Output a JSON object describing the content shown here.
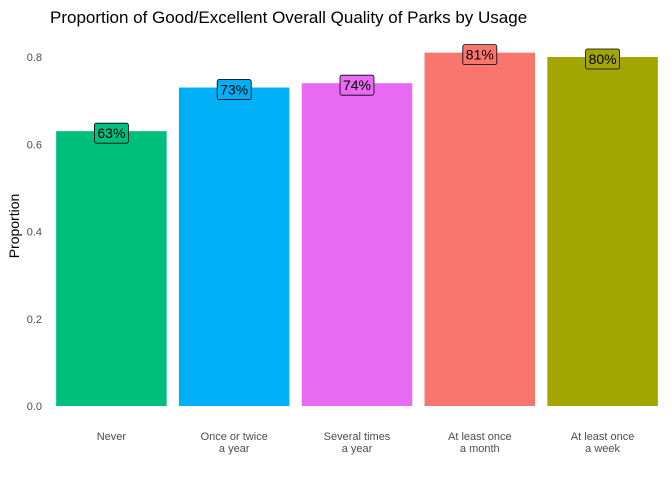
{
  "chart_data": {
    "type": "bar",
    "title": "Proportion of Good/Excellent Overall Quality of Parks by Usage",
    "xlabel": "",
    "ylabel": "Proportion",
    "ylim": [
      0,
      0.8
    ],
    "yticks": [
      "0.0",
      "0.2",
      "0.4",
      "0.6",
      "0.8"
    ],
    "grid": false,
    "categories": [
      [
        "Never"
      ],
      [
        "Once or twice",
        "a year"
      ],
      [
        "Several times",
        "a year"
      ],
      [
        "At least once",
        "a month"
      ],
      [
        "At least once",
        "a week"
      ]
    ],
    "values": [
      0.63,
      0.73,
      0.74,
      0.81,
      0.8
    ],
    "data_labels": [
      "63%",
      "73%",
      "74%",
      "81%",
      "80%"
    ],
    "colors": [
      "#00BF7D",
      "#00B0F6",
      "#E76BF3",
      "#F8766D",
      "#A3A500"
    ]
  }
}
